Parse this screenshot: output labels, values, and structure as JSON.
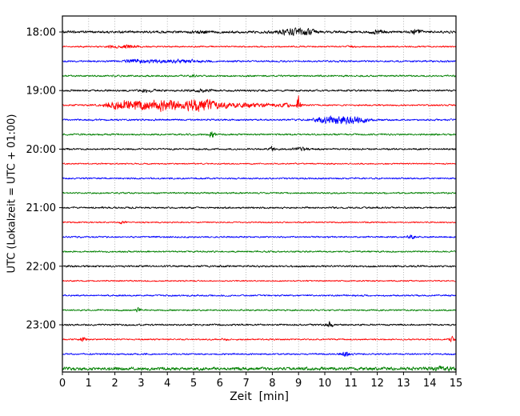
{
  "chart_data": {
    "type": "line",
    "subtype": "seismogram-helicorder",
    "title": "",
    "xlabel": "Zeit  [min]",
    "ylabel": "UTC (Lokalzeit = UTC + 01:00)",
    "xlim": [
      0,
      15
    ],
    "x_ticks": [
      0,
      1,
      2,
      3,
      4,
      5,
      6,
      7,
      8,
      9,
      10,
      11,
      12,
      13,
      14,
      15
    ],
    "hour_labels": [
      "18:00",
      "19:00",
      "20:00",
      "21:00",
      "22:00",
      "23:00"
    ],
    "minutes_per_line": 15,
    "grid": "dotted-vertical",
    "legend": "none",
    "trace_color_cycle": [
      "#000000",
      "#ff0000",
      "#0000ff",
      "#008000"
    ],
    "traces": [
      {
        "time": "18:00",
        "color": "#000000",
        "noise": 1.8,
        "events": [
          {
            "t": 8.75,
            "w": 0.35,
            "a": 4
          },
          {
            "t": 9.4,
            "w": 0.25,
            "a": 2.5
          },
          {
            "t": 12.0,
            "w": 0.15,
            "a": 2.5
          },
          {
            "t": 13.5,
            "w": 0.12,
            "a": 3.5
          },
          {
            "t": 5.3,
            "w": 0.2,
            "a": 1.5
          }
        ]
      },
      {
        "time": "18:15",
        "color": "#ff0000",
        "noise": 1.1,
        "events": [
          {
            "t": 2.5,
            "w": 0.25,
            "a": 2.2
          },
          {
            "t": 1.9,
            "w": 0.15,
            "a": 1.5
          },
          {
            "t": 11.0,
            "w": 0.1,
            "a": 1.2
          }
        ]
      },
      {
        "time": "18:30",
        "color": "#0000ff",
        "noise": 1.3,
        "events": [
          {
            "t": 3.3,
            "w": 0.5,
            "a": 1.8
          },
          {
            "t": 4.7,
            "w": 0.5,
            "a": 1.6
          },
          {
            "t": 2.7,
            "w": 0.2,
            "a": 1.5
          }
        ]
      },
      {
        "time": "18:45",
        "color": "#008000",
        "noise": 1.3,
        "events": [
          {
            "t": 5.0,
            "w": 0.1,
            "a": 1.5
          }
        ]
      },
      {
        "time": "19:00",
        "color": "#000000",
        "noise": 1.4,
        "events": [
          {
            "t": 5.3,
            "w": 0.25,
            "a": 2.0
          },
          {
            "t": 3.2,
            "w": 0.2,
            "a": 1.5
          }
        ]
      },
      {
        "time": "19:15",
        "color": "#ff0000",
        "noise": 1.2,
        "events": [
          {
            "t": 2.3,
            "w": 0.45,
            "a": 6
          },
          {
            "t": 3.0,
            "w": 0.3,
            "a": 3
          },
          {
            "t": 3.9,
            "w": 0.45,
            "a": 8
          },
          {
            "t": 5.2,
            "w": 0.45,
            "a": 7
          },
          {
            "t": 6.3,
            "w": 0.8,
            "a": 2.5
          },
          {
            "t": 7.6,
            "w": 0.6,
            "a": 1.5
          },
          {
            "t": 9.0,
            "w": 0.05,
            "a": 12
          },
          {
            "t": 8.5,
            "w": 0.2,
            "a": 1.5
          }
        ]
      },
      {
        "time": "19:30",
        "color": "#0000ff",
        "noise": 1.3,
        "events": [
          {
            "t": 10.5,
            "w": 0.5,
            "a": 4.5
          },
          {
            "t": 11.2,
            "w": 0.35,
            "a": 3
          },
          {
            "t": 9.9,
            "w": 0.2,
            "a": 2
          }
        ]
      },
      {
        "time": "19:45",
        "color": "#008000",
        "noise": 1.3,
        "events": [
          {
            "t": 5.7,
            "w": 0.08,
            "a": 4.5
          }
        ]
      },
      {
        "time": "20:00",
        "color": "#000000",
        "noise": 1.3,
        "events": [
          {
            "t": 8.0,
            "w": 0.07,
            "a": 3
          },
          {
            "t": 9.1,
            "w": 0.25,
            "a": 1.5
          }
        ]
      },
      {
        "time": "20:15",
        "color": "#ff0000",
        "noise": 1.0,
        "events": []
      },
      {
        "time": "20:30",
        "color": "#0000ff",
        "noise": 1.2,
        "events": []
      },
      {
        "time": "20:45",
        "color": "#008000",
        "noise": 1.2,
        "events": []
      },
      {
        "time": "21:00",
        "color": "#000000",
        "noise": 1.3,
        "events": []
      },
      {
        "time": "21:15",
        "color": "#ff0000",
        "noise": 1.0,
        "events": [
          {
            "t": 2.3,
            "w": 0.07,
            "a": 2.5
          }
        ]
      },
      {
        "time": "21:30",
        "color": "#0000ff",
        "noise": 1.2,
        "events": [
          {
            "t": 13.3,
            "w": 0.1,
            "a": 2.5
          }
        ]
      },
      {
        "time": "21:45",
        "color": "#008000",
        "noise": 1.2,
        "events": []
      },
      {
        "time": "22:00",
        "color": "#000000",
        "noise": 1.4,
        "events": []
      },
      {
        "time": "22:15",
        "color": "#ff0000",
        "noise": 1.0,
        "events": []
      },
      {
        "time": "22:30",
        "color": "#0000ff",
        "noise": 1.2,
        "events": []
      },
      {
        "time": "22:45",
        "color": "#008000",
        "noise": 1.2,
        "events": [
          {
            "t": 2.9,
            "w": 0.08,
            "a": 2.5
          }
        ]
      },
      {
        "time": "23:00",
        "color": "#000000",
        "noise": 1.3,
        "events": [
          {
            "t": 10.2,
            "w": 0.1,
            "a": 3.5
          }
        ]
      },
      {
        "time": "23:15",
        "color": "#ff0000",
        "noise": 1.1,
        "events": [
          {
            "t": 0.8,
            "w": 0.08,
            "a": 3.5
          },
          {
            "t": 14.85,
            "w": 0.08,
            "a": 3.5
          },
          {
            "t": 6.2,
            "w": 0.08,
            "a": 1.5
          }
        ]
      },
      {
        "time": "23:30",
        "color": "#0000ff",
        "noise": 1.2,
        "events": [
          {
            "t": 10.8,
            "w": 0.12,
            "a": 3
          }
        ]
      },
      {
        "time": "23:45",
        "color": "#008000",
        "noise": 2.4,
        "events": [
          {
            "t": 14.5,
            "w": 0.3,
            "a": 1.5
          }
        ]
      }
    ]
  }
}
